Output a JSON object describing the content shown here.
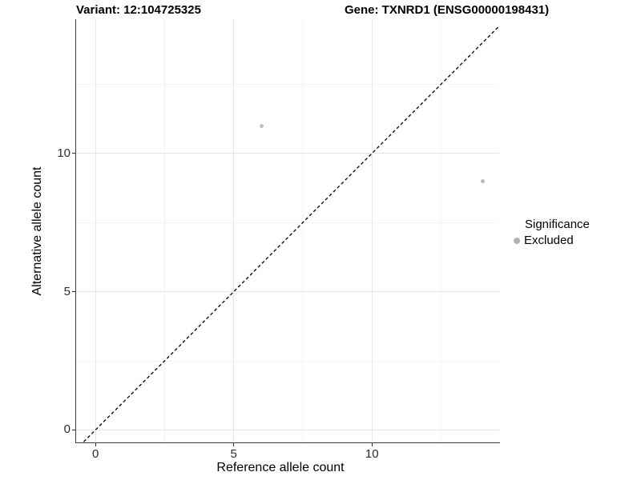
{
  "header": {
    "title_left": "Variant: 12:104725325",
    "title_right": "Gene: TXNRD1 (ENSG00000198431)"
  },
  "axes": {
    "x": {
      "title": "Reference allele count",
      "tick_labels": [
        "0",
        "5",
        "10"
      ]
    },
    "y": {
      "title": "Alternative allele count",
      "tick_labels": [
        "0",
        "5",
        "10"
      ]
    }
  },
  "legend": {
    "title": "Significance",
    "items": [
      {
        "label": "Excluded",
        "marker_color": "#b3b3b3"
      }
    ]
  },
  "chart_data": {
    "type": "scatter",
    "title": "Variant: 12:104725325  /  Gene: TXNRD1 (ENSG00000198431)",
    "xlabel": "Reference allele count",
    "ylabel": "Alternative allele count",
    "xlim": [
      -0.7,
      14.6
    ],
    "ylim": [
      -0.45,
      14.85
    ],
    "x_major_ticks": [
      0,
      5,
      10
    ],
    "x_minor_ticks": [
      2.5,
      7.5,
      12.5
    ],
    "y_major_ticks": [
      0,
      5,
      10
    ],
    "y_minor_ticks": [
      2.5,
      7.5,
      12.5
    ],
    "grid": "major+minor",
    "legend_position": "right",
    "series": [
      {
        "name": "Excluded",
        "color": "#bdbdbd",
        "marker_size_px": 5,
        "points": [
          {
            "x": 6,
            "y": 11
          },
          {
            "x": 14,
            "y": 9
          }
        ]
      }
    ],
    "reference_line": {
      "kind": "identity y=x",
      "slope": 1,
      "intercept": 0,
      "style": "dashed",
      "color": "#000000"
    }
  },
  "style": {
    "major_grid_color": "#e6e6e6",
    "minor_grid_color": "#f4f4f4",
    "axis_line_color": "#3a3a3a",
    "point_color": "#bdbdbd",
    "legend_marker_color": "#b3b3b3"
  }
}
